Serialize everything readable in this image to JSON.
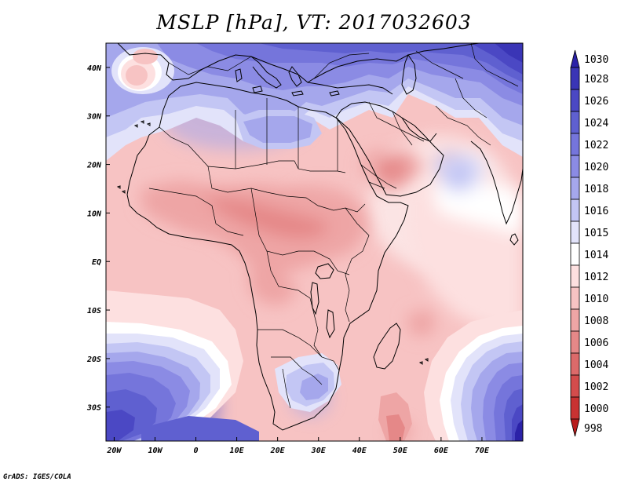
{
  "title": "MSLP [hPa], VT: 2017032603",
  "credit": "GrADS: IGES/COLA",
  "map": {
    "lon_range": [
      -22,
      80
    ],
    "lat_range": [
      -37,
      45
    ],
    "lon_ticks": [
      {
        "value": -20,
        "label": "20W"
      },
      {
        "value": -10,
        "label": "10W"
      },
      {
        "value": 0,
        "label": "0"
      },
      {
        "value": 10,
        "label": "10E"
      },
      {
        "value": 20,
        "label": "20E"
      },
      {
        "value": 30,
        "label": "30E"
      },
      {
        "value": 40,
        "label": "40E"
      },
      {
        "value": 50,
        "label": "50E"
      },
      {
        "value": 60,
        "label": "60E"
      },
      {
        "value": 70,
        "label": "70E"
      }
    ],
    "lat_ticks": [
      {
        "value": 40,
        "label": "40N"
      },
      {
        "value": 30,
        "label": "30N"
      },
      {
        "value": 20,
        "label": "20N"
      },
      {
        "value": 10,
        "label": "10N"
      },
      {
        "value": 0,
        "label": "EQ"
      },
      {
        "value": -10,
        "label": "10S"
      },
      {
        "value": -20,
        "label": "20S"
      },
      {
        "value": -30,
        "label": "30S"
      }
    ]
  },
  "colorbar": {
    "levels": [
      "1030",
      "1028",
      "1026",
      "1024",
      "1022",
      "1020",
      "1018",
      "1016",
      "1015",
      "1014",
      "1012",
      "1010",
      "1008",
      "1006",
      "1004",
      "1002",
      "1000",
      "998"
    ],
    "colors": [
      "#2b22a8",
      "#3a35b6",
      "#4b48c4",
      "#5f60d0",
      "#7575db",
      "#8b8be4",
      "#a5a7ec",
      "#c3c6f4",
      "#e2e3fa",
      "#ffffff",
      "#fde0e0",
      "#f7c3c3",
      "#eea5a5",
      "#e58888",
      "#dc6a6a",
      "#d34c4c",
      "#c93232",
      "#b81d1d"
    ]
  },
  "fields": {
    "base": "#f7c3c3",
    "patches": [
      {
        "lon": 30,
        "lat": 42,
        "rx": 40,
        "ry": 5,
        "value": "1022",
        "color": "#8b8be4"
      },
      {
        "lon": 72,
        "lat": 40,
        "rx": 10,
        "ry": 8,
        "value": "1028",
        "color": "#3a35b6"
      },
      {
        "lon": -12,
        "lat": 41,
        "rx": 5,
        "ry": 3.5,
        "value": "1010",
        "color": "#f7c3c3"
      },
      {
        "lon": 10,
        "lat": 29,
        "rx": 18,
        "ry": 6,
        "value": "1018",
        "color": "#a5a7ec"
      },
      {
        "lon": 30,
        "lat": 12,
        "rx": 8,
        "ry": 4,
        "value": "1008",
        "color": "#eea5a5"
      },
      {
        "lon": 45,
        "lat": 20,
        "rx": 5,
        "ry": 3,
        "value": "1008",
        "color": "#eea5a5"
      },
      {
        "lon": 8,
        "lat": 10,
        "rx": 14,
        "ry": 5,
        "value": "1008",
        "color": "#eea5a5"
      },
      {
        "lon": 20,
        "lat": 3,
        "rx": 8,
        "ry": 4,
        "value": "1008",
        "color": "#eea5a5"
      },
      {
        "lon": 60,
        "lat": 12,
        "rx": 18,
        "ry": 14,
        "value": "1014",
        "color": "#ffffff"
      },
      {
        "lon": 62,
        "lat": 20,
        "rx": 4,
        "ry": 3,
        "value": "1016",
        "color": "#c3c6f4"
      },
      {
        "lon": -12,
        "lat": -30,
        "rx": 18,
        "ry": 10,
        "value": "1024",
        "color": "#5f60d0"
      },
      {
        "lon": 75,
        "lat": -32,
        "rx": 12,
        "ry": 10,
        "value": "1026",
        "color": "#4b48c4"
      },
      {
        "lon": 50,
        "lat": -35,
        "rx": 3,
        "ry": 2,
        "value": "1006",
        "color": "#e58888"
      },
      {
        "lon": 28,
        "lat": -28,
        "rx": 5,
        "ry": 4,
        "value": "1018",
        "color": "#a5a7ec"
      }
    ]
  },
  "legend_note": "MSLP"
}
